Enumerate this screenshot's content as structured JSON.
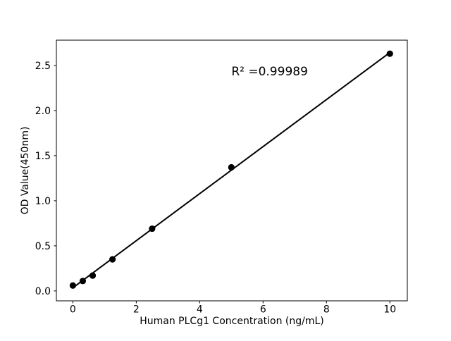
{
  "chart_data": {
    "type": "scatter",
    "title": "",
    "xlabel": "Human PLCg1 Concentration (ng/mL)",
    "ylabel": "OD Value(450nm)",
    "x": [
      0,
      0.3125,
      0.625,
      1.25,
      2.5,
      5,
      10
    ],
    "y": [
      0.06,
      0.11,
      0.17,
      0.35,
      0.69,
      1.37,
      2.63
    ],
    "fit_line": true,
    "annotation": {
      "text": "R² =0.99989",
      "x": 5.0,
      "y": 2.39
    },
    "xlim": [
      -0.52,
      10.55
    ],
    "ylim": [
      -0.11,
      2.78
    ],
    "xticks": {
      "values": [
        0,
        2,
        4,
        6,
        8,
        10
      ],
      "labels": [
        "0",
        "2",
        "4",
        "6",
        "8",
        "10"
      ]
    },
    "yticks": {
      "values": [
        0,
        0.5,
        1.0,
        1.5,
        2.0,
        2.5
      ],
      "labels": [
        "0.0",
        "0.5",
        "1.0",
        "1.5",
        "2.0",
        "2.5"
      ]
    },
    "grid": false,
    "legend": null,
    "marker_color": "#000000",
    "line_color": "#000000",
    "background": "#ffffff"
  }
}
